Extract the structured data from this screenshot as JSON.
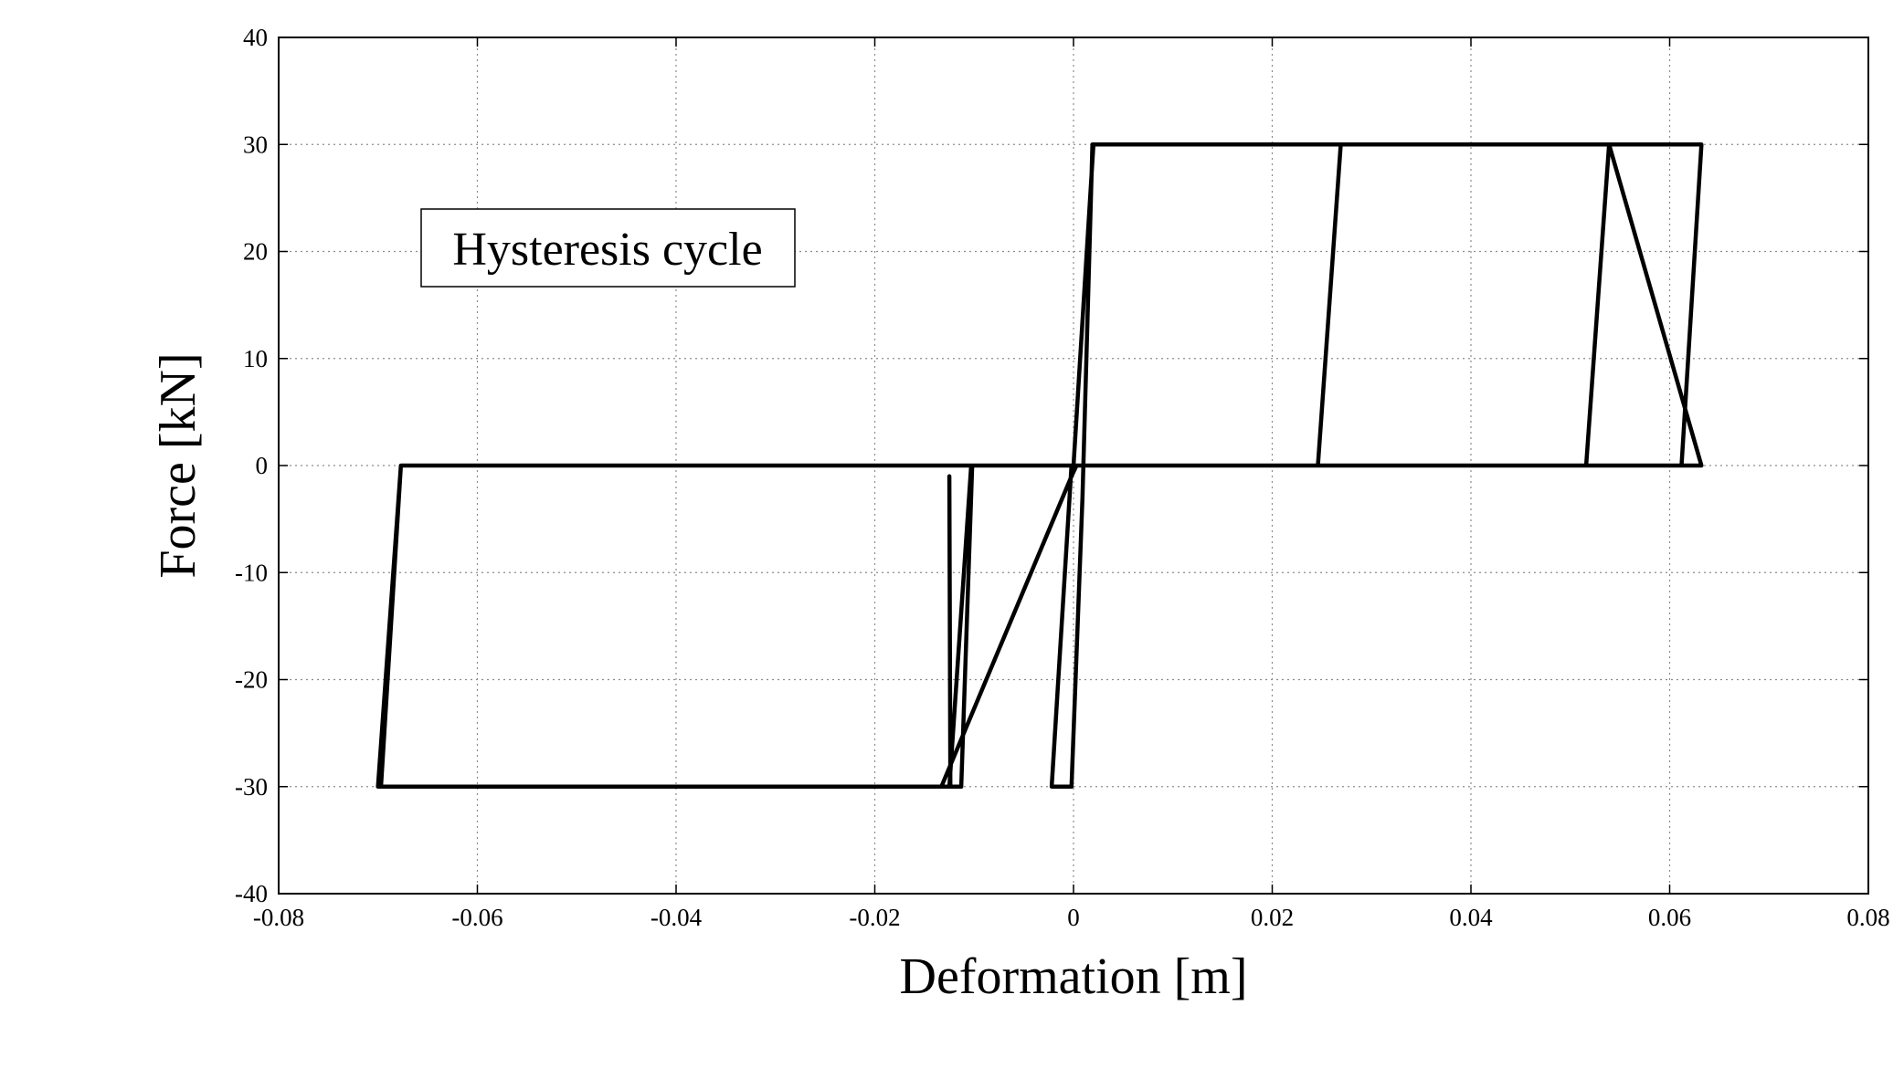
{
  "chart_data": {
    "type": "line",
    "title": "",
    "xlabel": "Deformation [m]",
    "ylabel": "Force [kN]",
    "xlim": [
      -0.08,
      0.08
    ],
    "ylim": [
      -40,
      40
    ],
    "x_ticks": [
      -0.08,
      -0.06,
      -0.04,
      -0.02,
      0,
      0.02,
      0.04,
      0.06,
      0.08
    ],
    "x_tick_labels": [
      "-0.08",
      "-0.06",
      "-0.04",
      "-0.02",
      "0",
      "0.02",
      "0.04",
      "0.06",
      "0.08"
    ],
    "y_ticks": [
      40,
      30,
      20,
      10,
      0,
      -10,
      -20,
      -30,
      -40
    ],
    "y_tick_labels": [
      "40",
      "30",
      "20",
      "10",
      "0",
      "-10",
      "-20",
      "-30",
      "-40"
    ],
    "grid": true,
    "annotation": "Hysteresis cycle",
    "series": [
      {
        "x": [
          0,
          0.002,
          0.0632,
          0.0612,
          0.0632,
          -0.0002,
          -0.0022,
          -0.0002,
          0.0009,
          0.0019,
          0.0269,
          0.0246,
          0.0632,
          0.0003,
          -0.0002,
          -0.0133,
          -0.0113,
          -0.0102,
          -0.0677,
          -0.0697,
          -0.0125,
          -0.0103,
          0.0632,
          0.0539,
          0.0516,
          -0.0677,
          -0.07,
          -0.0124,
          -0.0125
        ],
        "y": [
          0,
          30,
          30,
          0,
          0,
          0,
          -30,
          -30,
          -3,
          30,
          30,
          0,
          0,
          0,
          -1,
          -30,
          -30,
          0,
          0,
          -30,
          -30,
          0,
          0,
          30,
          0,
          0,
          -30,
          -30,
          -1
        ]
      }
    ]
  }
}
